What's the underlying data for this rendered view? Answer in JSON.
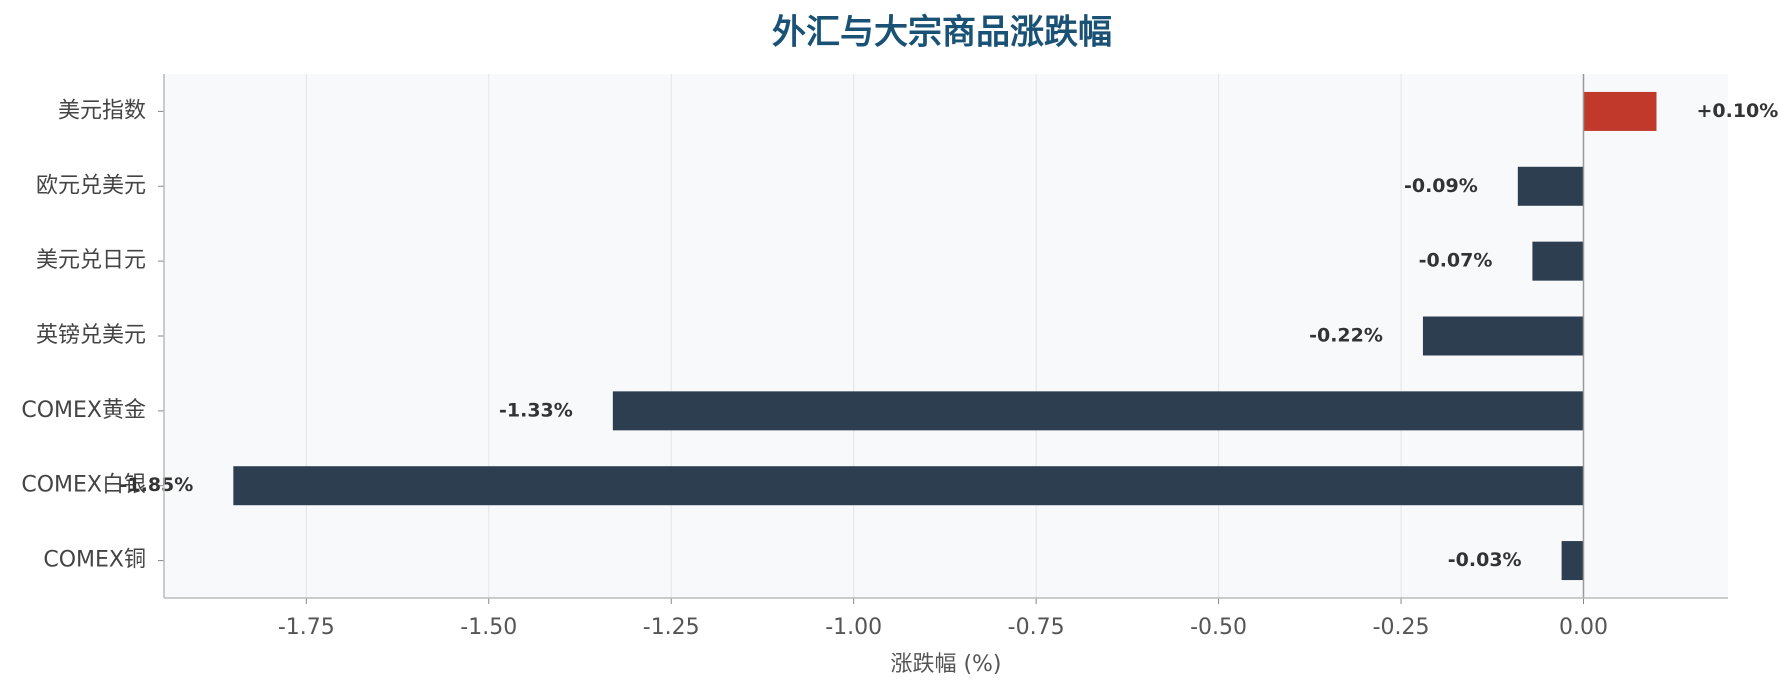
{
  "chart_data": {
    "type": "barh",
    "title": "外汇与大宗商品涨跌幅",
    "xlabel": "涨跌幅 (%)",
    "categories": [
      "美元指数",
      "欧元兑美元",
      "美元兑日元",
      "英镑兑美元",
      "COMEX黄金",
      "COMEX白银",
      "COMEX铜"
    ],
    "values": [
      0.1,
      -0.09,
      -0.07,
      -0.22,
      -1.33,
      -1.85,
      -0.03
    ],
    "value_labels": [
      "+0.10%",
      "-0.09%",
      "-0.07%",
      "-0.22%",
      "-1.33%",
      "-1.85%",
      "-0.03%"
    ],
    "positive_color": "#c0392b",
    "negative_color": "#2c3e50",
    "xlim": [
      -1.945,
      0.198
    ],
    "xticks": [
      -1.75,
      {
        "value": -1.5,
        "label": "-1.50"
      },
      -1.25,
      {
        "value": -1,
        "label": "-1.00"
      },
      -0.75,
      {
        "value": -0.5,
        "label": "-0.50"
      },
      -0.25,
      {
        "value": 0,
        "label": "0.00"
      }
    ],
    "grid": true
  }
}
